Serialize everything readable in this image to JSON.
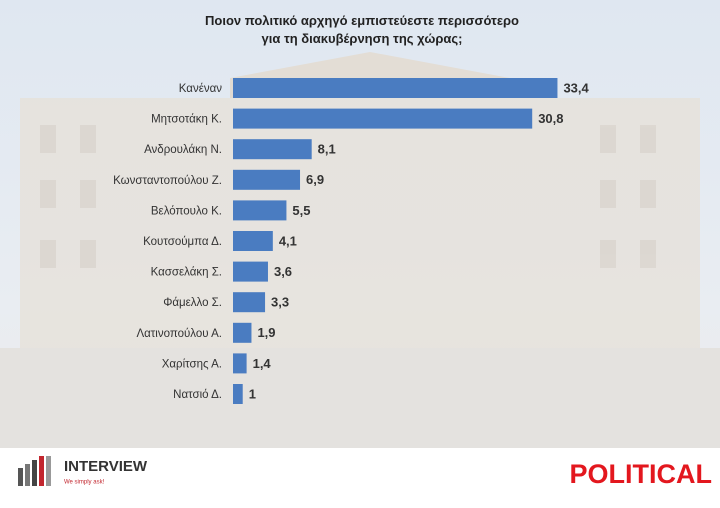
{
  "chart_data": {
    "type": "bar",
    "orientation": "horizontal",
    "title": [
      "Ποιον πολιτικό αρχηγό εμπιστεύεστε περισσότερο",
      "για τη διακυβέρνηση της χώρας;"
    ],
    "categories": [
      "Κανέναν",
      "Μητσοτάκη Κ.",
      "Ανδρουλάκη Ν.",
      "Κωνσταντοπούλου Ζ.",
      "Βελόπουλο Κ.",
      "Κουτσούμπα Δ.",
      "Κασσελάκη Σ.",
      "Φάμελλο Σ.",
      "Λατινοπούλου Α.",
      "Χαρίτσης Α.",
      "Νατσιό Δ."
    ],
    "values": [
      33.4,
      30.8,
      8.1,
      6.9,
      5.5,
      4.1,
      3.6,
      3.3,
      1.9,
      1.4,
      1
    ],
    "value_labels": [
      "33,4",
      "30,8",
      "8,1",
      "6,9",
      "5,5",
      "4,1",
      "3,6",
      "3,3",
      "1,9",
      "1,4",
      "1"
    ],
    "color": "#4a7cc1",
    "xlim": [
      0,
      35
    ]
  },
  "branding": {
    "pollster": "INTERVIEW",
    "slogan": "We simply ask!",
    "outlet": "POLITICAL"
  }
}
